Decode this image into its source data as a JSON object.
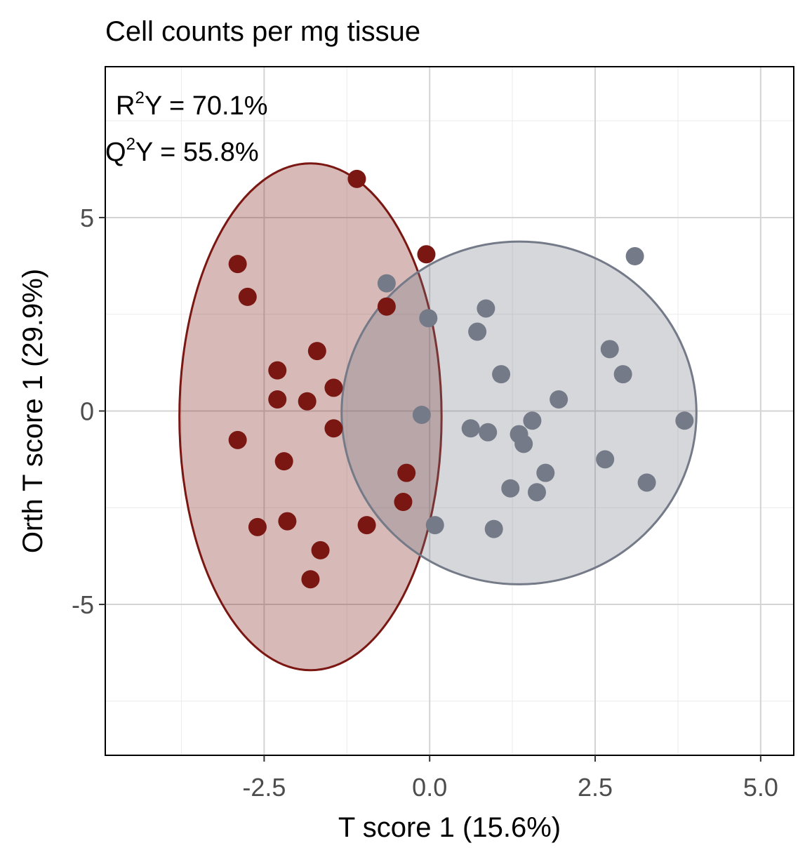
{
  "chart_data": {
    "type": "scatter",
    "title": "Cell counts per mg tissue",
    "xlabel": "T score 1 (15.6%)",
    "ylabel": "Orth T score 1 (29.9%)",
    "xlim": [
      -4.9,
      5.5
    ],
    "ylim": [
      -8.9,
      8.9
    ],
    "x_ticks": [
      -2.5,
      0.0,
      2.5,
      5.0
    ],
    "x_tick_labels": [
      "-2.5",
      "0.0",
      "2.5",
      "5.0"
    ],
    "y_ticks": [
      -5,
      0,
      5
    ],
    "y_tick_labels": [
      "-5",
      "0",
      "5"
    ],
    "grid": true,
    "annotations": [
      {
        "base": "R",
        "sup": "2",
        "rest": "Y = 70.1%"
      },
      {
        "base": "Q",
        "sup": "2",
        "rest": "Y = 55.8%"
      }
    ],
    "series": [
      {
        "color": "#7b1712",
        "ellipse": {
          "center": [
            -1.8,
            -0.15
          ],
          "rx": 1.98,
          "ry": 6.55
        },
        "points": [
          [
            -1.1,
            6.0
          ],
          [
            -0.05,
            4.05
          ],
          [
            -2.9,
            3.8
          ],
          [
            -2.75,
            2.95
          ],
          [
            -0.65,
            2.7
          ],
          [
            -1.7,
            1.55
          ],
          [
            -2.3,
            1.05
          ],
          [
            -1.45,
            0.6
          ],
          [
            -2.3,
            0.3
          ],
          [
            -1.85,
            0.25
          ],
          [
            -1.45,
            -0.45
          ],
          [
            -2.9,
            -0.75
          ],
          [
            -2.2,
            -1.3
          ],
          [
            -0.35,
            -1.6
          ],
          [
            -0.4,
            -2.35
          ],
          [
            -0.95,
            -2.95
          ],
          [
            -2.15,
            -2.85
          ],
          [
            -2.6,
            -3.0
          ],
          [
            -1.65,
            -3.6
          ],
          [
            -1.8,
            -4.35
          ]
        ]
      },
      {
        "color": "#747a87",
        "ellipse": {
          "center": [
            1.35,
            -0.05
          ],
          "rx": 2.68,
          "ry": 4.43
        },
        "points": [
          [
            3.1,
            4.0
          ],
          [
            -0.65,
            3.3
          ],
          [
            0.85,
            2.65
          ],
          [
            -0.02,
            2.4
          ],
          [
            0.72,
            2.05
          ],
          [
            2.72,
            1.6
          ],
          [
            1.08,
            0.95
          ],
          [
            2.92,
            0.95
          ],
          [
            1.95,
            0.3
          ],
          [
            -0.12,
            -0.1
          ],
          [
            1.55,
            -0.25
          ],
          [
            3.85,
            -0.25
          ],
          [
            0.62,
            -0.45
          ],
          [
            0.88,
            -0.55
          ],
          [
            1.35,
            -0.6
          ],
          [
            1.42,
            -0.85
          ],
          [
            2.65,
            -1.25
          ],
          [
            1.75,
            -1.6
          ],
          [
            3.28,
            -1.85
          ],
          [
            1.22,
            -2.0
          ],
          [
            1.62,
            -2.1
          ],
          [
            0.08,
            -2.95
          ],
          [
            0.97,
            -3.05
          ]
        ]
      }
    ]
  }
}
